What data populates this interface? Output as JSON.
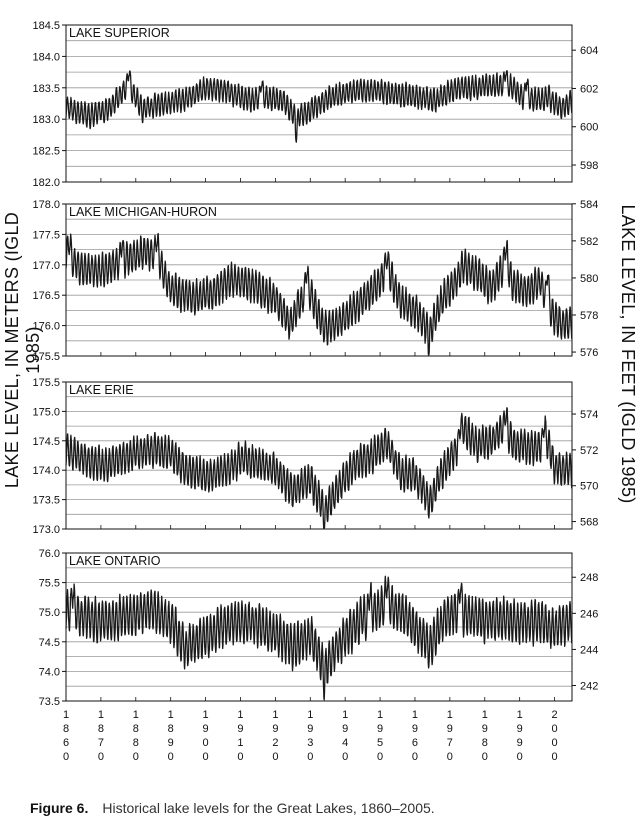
{
  "caption": {
    "label": "Figure 6.",
    "text": "Historical lake levels for the Great Lakes, 1860–2005."
  },
  "chart_data": {
    "type": "line",
    "ylabel_left": "LAKE LEVEL, IN METERS (IGLD 1985)",
    "ylabel_right": "LAKE LEVEL, IN FEET (IGLD 1985)",
    "xlim": [
      1860,
      2005
    ],
    "x_ticks": [
      1860,
      1870,
      1880,
      1890,
      1900,
      1910,
      1920,
      1930,
      1940,
      1950,
      1960,
      1970,
      1980,
      1990,
      2000
    ],
    "x_tick_labels": [
      "1860",
      "1870",
      "1880",
      "1890",
      "1900",
      "1910",
      "1920",
      "1930",
      "1940",
      "1950",
      "1960",
      "1970",
      "1980",
      "1990",
      "2000"
    ],
    "color": "#1a1a1a",
    "grid": true,
    "panels": [
      {
        "title": "LAKE SUPERIOR",
        "ylim": [
          182.0,
          184.5
        ],
        "y_ticks": [
          182.0,
          182.5,
          183.0,
          183.5,
          184.0,
          184.5
        ],
        "y_tick_labels": [
          "182.0",
          "182.5",
          "183.0",
          "183.5",
          "184.0",
          "184.5"
        ],
        "feet_ticks": [
          598,
          600,
          602,
          604
        ],
        "amp": 0.17,
        "anchors": [
          [
            1860,
            183.2
          ],
          [
            1866,
            183.05
          ],
          [
            1872,
            183.15
          ],
          [
            1878,
            183.55
          ],
          [
            1882,
            183.15
          ],
          [
            1888,
            183.25
          ],
          [
            1894,
            183.3
          ],
          [
            1900,
            183.5
          ],
          [
            1906,
            183.45
          ],
          [
            1912,
            183.3
          ],
          [
            1918,
            183.35
          ],
          [
            1922,
            183.3
          ],
          [
            1926,
            183.05
          ],
          [
            1930,
            183.15
          ],
          [
            1936,
            183.35
          ],
          [
            1942,
            183.45
          ],
          [
            1948,
            183.45
          ],
          [
            1954,
            183.4
          ],
          [
            1960,
            183.35
          ],
          [
            1966,
            183.3
          ],
          [
            1972,
            183.5
          ],
          [
            1978,
            183.5
          ],
          [
            1984,
            183.55
          ],
          [
            1988,
            183.5
          ],
          [
            1992,
            183.3
          ],
          [
            1998,
            183.35
          ],
          [
            2002,
            183.15
          ],
          [
            2005,
            183.3
          ]
        ],
        "events": [
          [
            1878,
            183.85
          ],
          [
            1926,
            182.72
          ],
          [
            1986,
            183.9
          ],
          [
            1916,
            183.75
          ],
          [
            1992,
            183.8
          ]
        ]
      },
      {
        "title": "LAKE MICHIGAN-HURON",
        "ylim": [
          175.5,
          178.0
        ],
        "y_ticks": [
          175.5,
          176.0,
          176.5,
          177.0,
          177.5,
          178.0
        ],
        "y_tick_labels": [
          "175.5",
          "176.0",
          "176.5",
          "177.0",
          "177.5",
          "178.0"
        ],
        "feet_ticks": [
          576,
          578,
          580,
          582,
          584
        ],
        "amp": 0.25,
        "anchors": [
          [
            1860,
            177.2
          ],
          [
            1864,
            176.95
          ],
          [
            1870,
            176.9
          ],
          [
            1876,
            177.05
          ],
          [
            1882,
            177.2
          ],
          [
            1886,
            177.15
          ],
          [
            1890,
            176.6
          ],
          [
            1896,
            176.45
          ],
          [
            1902,
            176.55
          ],
          [
            1908,
            176.75
          ],
          [
            1912,
            176.7
          ],
          [
            1916,
            176.55
          ],
          [
            1920,
            176.45
          ],
          [
            1924,
            176.0
          ],
          [
            1928,
            176.5
          ],
          [
            1930,
            176.55
          ],
          [
            1934,
            175.95
          ],
          [
            1938,
            176.05
          ],
          [
            1944,
            176.35
          ],
          [
            1948,
            176.6
          ],
          [
            1952,
            176.95
          ],
          [
            1956,
            176.4
          ],
          [
            1960,
            176.25
          ],
          [
            1964,
            175.9
          ],
          [
            1968,
            176.45
          ],
          [
            1972,
            176.75
          ],
          [
            1974,
            177.0
          ],
          [
            1978,
            176.85
          ],
          [
            1982,
            176.6
          ],
          [
            1986,
            177.05
          ],
          [
            1988,
            176.7
          ],
          [
            1992,
            176.55
          ],
          [
            1996,
            176.75
          ],
          [
            1998,
            176.3
          ],
          [
            2002,
            176.0
          ],
          [
            2005,
            176.05
          ]
        ],
        "events": [
          [
            1861,
            177.5
          ],
          [
            1876,
            177.55
          ],
          [
            1886,
            177.6
          ],
          [
            1929,
            177.15
          ],
          [
            1952,
            177.25
          ],
          [
            1964,
            175.62
          ],
          [
            1986,
            177.5
          ],
          [
            1998,
            177.15
          ]
        ]
      },
      {
        "title": "LAKE ERIE",
        "ylim": [
          173.0,
          175.5
        ],
        "y_ticks": [
          173.0,
          173.5,
          174.0,
          174.5,
          175.0,
          175.5
        ],
        "y_tick_labels": [
          "173.0",
          "173.5",
          "174.0",
          "174.5",
          "175.0",
          "175.5"
        ],
        "feet_ticks": [
          568,
          570,
          572,
          574
        ],
        "amp": 0.26,
        "anchors": [
          [
            1860,
            174.35
          ],
          [
            1866,
            174.15
          ],
          [
            1872,
            174.1
          ],
          [
            1878,
            174.25
          ],
          [
            1884,
            174.35
          ],
          [
            1890,
            174.3
          ],
          [
            1894,
            174.0
          ],
          [
            1900,
            173.9
          ],
          [
            1906,
            174.0
          ],
          [
            1910,
            174.2
          ],
          [
            1916,
            174.1
          ],
          [
            1920,
            174.0
          ],
          [
            1925,
            173.65
          ],
          [
            1930,
            173.85
          ],
          [
            1934,
            173.3
          ],
          [
            1938,
            173.7
          ],
          [
            1942,
            174.05
          ],
          [
            1946,
            174.2
          ],
          [
            1952,
            174.45
          ],
          [
            1956,
            173.95
          ],
          [
            1960,
            173.9
          ],
          [
            1964,
            173.45
          ],
          [
            1968,
            174.0
          ],
          [
            1972,
            174.35
          ],
          [
            1974,
            174.7
          ],
          [
            1978,
            174.45
          ],
          [
            1982,
            174.5
          ],
          [
            1986,
            174.75
          ],
          [
            1988,
            174.45
          ],
          [
            1994,
            174.35
          ],
          [
            1998,
            174.5
          ],
          [
            2000,
            174.05
          ],
          [
            2005,
            174.0
          ]
        ],
        "events": [
          [
            1934,
            173.12
          ],
          [
            1973,
            174.95
          ],
          [
            1986,
            175.05
          ],
          [
            1997,
            175.0
          ],
          [
            1964,
            173.4
          ]
        ]
      },
      {
        "title": "LAKE ONTARIO",
        "ylim": [
          73.5,
          76.0
        ],
        "y_ticks": [
          73.5,
          74.0,
          74.5,
          75.0,
          75.5,
          76.0
        ],
        "y_tick_labels": [
          "73.5",
          "74.0",
          "74.5",
          "75.0",
          "75.5",
          "76.0"
        ],
        "feet_ticks": [
          242,
          244,
          246,
          248
        ],
        "amp": 0.33,
        "anchors": [
          [
            1860,
            75.05
          ],
          [
            1866,
            74.9
          ],
          [
            1872,
            74.85
          ],
          [
            1878,
            74.95
          ],
          [
            1884,
            75.05
          ],
          [
            1890,
            74.85
          ],
          [
            1894,
            74.4
          ],
          [
            1898,
            74.5
          ],
          [
            1904,
            74.75
          ],
          [
            1910,
            74.85
          ],
          [
            1914,
            74.8
          ],
          [
            1920,
            74.65
          ],
          [
            1925,
            74.4
          ],
          [
            1930,
            74.6
          ],
          [
            1934,
            74.05
          ],
          [
            1938,
            74.45
          ],
          [
            1944,
            74.85
          ],
          [
            1948,
            75.0
          ],
          [
            1952,
            75.15
          ],
          [
            1956,
            75.0
          ],
          [
            1960,
            74.75
          ],
          [
            1964,
            74.4
          ],
          [
            1968,
            74.85
          ],
          [
            1972,
            75.0
          ],
          [
            1976,
            74.95
          ],
          [
            1980,
            74.85
          ],
          [
            1986,
            74.9
          ],
          [
            1990,
            74.8
          ],
          [
            1996,
            74.85
          ],
          [
            2000,
            74.7
          ],
          [
            2005,
            74.85
          ]
        ],
        "events": [
          [
            1862,
            75.6
          ],
          [
            1952,
            75.75
          ],
          [
            1973,
            75.7
          ],
          [
            1934,
            73.8
          ],
          [
            1964,
            74.35
          ],
          [
            1947,
            75.6
          ]
        ]
      }
    ]
  }
}
